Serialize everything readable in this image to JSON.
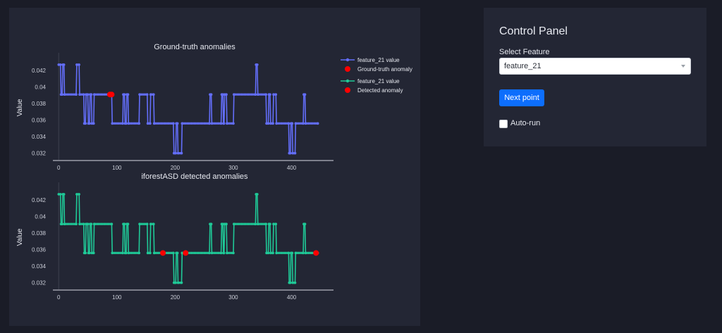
{
  "chart_data": [
    {
      "type": "line",
      "title": "Ground-truth anomalies",
      "xlabel": "",
      "ylabel": "Value",
      "xlim": [
        -10,
        472
      ],
      "ylim": [
        0.0312,
        0.0438
      ],
      "x_ticks": [
        0,
        100,
        200,
        300,
        400
      ],
      "y_ticks": [
        0.032,
        0.034,
        0.036,
        0.038,
        0.04,
        0.042
      ],
      "y_tick_labels": [
        "0.032",
        "0.034",
        "0.036",
        "0.038",
        "0.04",
        "0.042"
      ],
      "grid": false,
      "legend_position": "right",
      "series": [
        {
          "name": "feature_21 value",
          "color": "#636efa",
          "mode": "lines+markers"
        },
        {
          "name": "Ground-truth anomaly",
          "color": "#ff0000",
          "mode": "markers",
          "points": [
            [
              88,
              0.0391
            ],
            [
              91,
              0.0391
            ]
          ]
        }
      ]
    },
    {
      "type": "line",
      "title": "iforestASD detected anomalies",
      "xlabel": "",
      "ylabel": "Value",
      "xlim": [
        -10,
        472
      ],
      "ylim": [
        0.0312,
        0.0438
      ],
      "x_ticks": [
        0,
        100,
        200,
        300,
        400
      ],
      "y_ticks": [
        0.032,
        0.034,
        0.036,
        0.038,
        0.04,
        0.042
      ],
      "y_tick_labels": [
        "0.032",
        "0.034",
        "0.036",
        "0.038",
        "0.04",
        "0.042"
      ],
      "grid": false,
      "legend_position": "right",
      "series": [
        {
          "name": "feature_21 value",
          "color": "#1fc997",
          "mode": "lines+markers"
        },
        {
          "name": "Detected anomaly",
          "color": "#ff0000",
          "mode": "markers",
          "points": [
            [
              179,
              0.0356
            ],
            [
              218,
              0.0356
            ],
            [
              442,
              0.0356
            ]
          ]
        }
      ]
    }
  ],
  "signal": {
    "name": "feature_21",
    "segments": [
      [
        0,
        3,
        0.0427
      ],
      [
        4,
        6,
        0.0391
      ],
      [
        7,
        9,
        0.0427
      ],
      [
        10,
        30,
        0.0391
      ],
      [
        31,
        35,
        0.0427
      ],
      [
        36,
        43,
        0.0391
      ],
      [
        44,
        46,
        0.0356
      ],
      [
        47,
        50,
        0.0391
      ],
      [
        51,
        53,
        0.0356
      ],
      [
        54,
        56,
        0.0391
      ],
      [
        57,
        60,
        0.0356
      ],
      [
        61,
        88,
        0.0391
      ],
      [
        89,
        91,
        0.0391
      ],
      [
        92,
        93,
        0.0356
      ],
      [
        94,
        110,
        0.0356
      ],
      [
        111,
        113,
        0.0391
      ],
      [
        114,
        116,
        0.0356
      ],
      [
        117,
        119,
        0.0391
      ],
      [
        120,
        138,
        0.0356
      ],
      [
        139,
        152,
        0.0391
      ],
      [
        153,
        157,
        0.0356
      ],
      [
        158,
        163,
        0.0391
      ],
      [
        164,
        197,
        0.0356
      ],
      [
        198,
        201,
        0.032
      ],
      [
        202,
        204,
        0.0356
      ],
      [
        205,
        211,
        0.032
      ],
      [
        212,
        259,
        0.0356
      ],
      [
        260,
        262,
        0.0391
      ],
      [
        263,
        279,
        0.0356
      ],
      [
        280,
        282,
        0.0391
      ],
      [
        283,
        284,
        0.0356
      ],
      [
        285,
        288,
        0.0391
      ],
      [
        289,
        300,
        0.0356
      ],
      [
        301,
        338,
        0.0391
      ],
      [
        339,
        341,
        0.0427
      ],
      [
        342,
        356,
        0.0391
      ],
      [
        357,
        360,
        0.0356
      ],
      [
        361,
        363,
        0.0391
      ],
      [
        364,
        368,
        0.0356
      ],
      [
        369,
        373,
        0.0391
      ],
      [
        374,
        395,
        0.0356
      ],
      [
        396,
        398,
        0.032
      ],
      [
        399,
        401,
        0.0356
      ],
      [
        402,
        406,
        0.032
      ],
      [
        407,
        420,
        0.0356
      ],
      [
        421,
        423,
        0.0391
      ],
      [
        424,
        445,
        0.0356
      ]
    ]
  },
  "control_panel": {
    "title": "Control Panel",
    "select_label": "Select Feature",
    "select_value": "feature_21",
    "next_button": "Next point",
    "autorun_label": "Auto-run"
  }
}
